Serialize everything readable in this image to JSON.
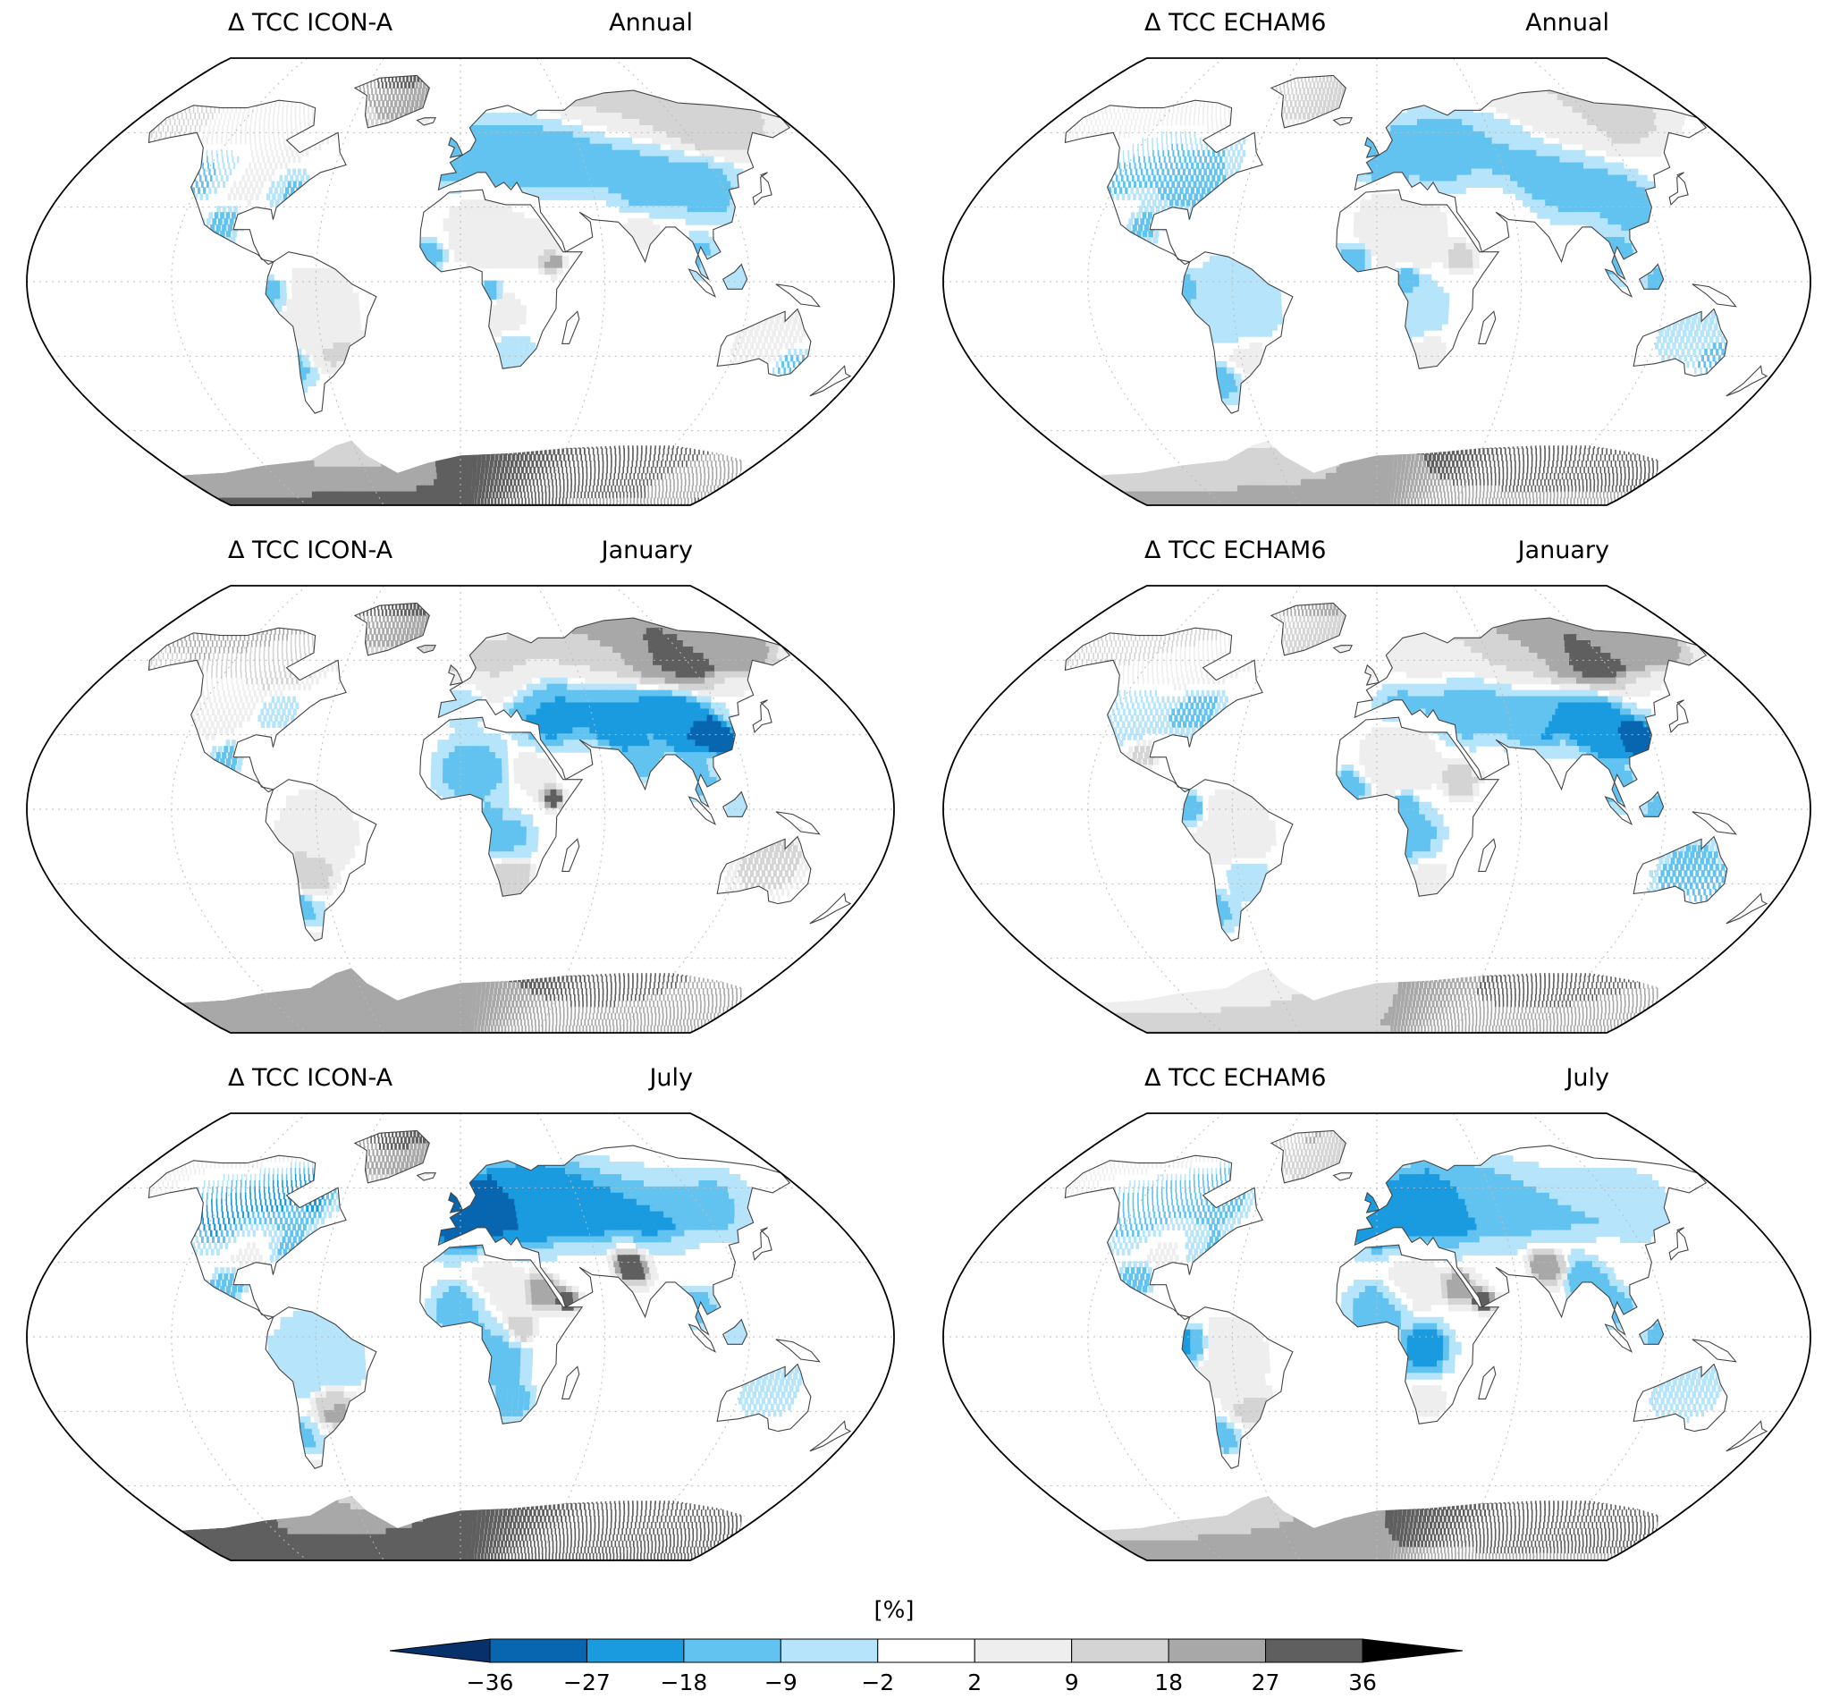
{
  "panels": [
    {
      "model_label": "Δ TCC ICON-A",
      "season_label": "Annual",
      "model": "ICON-A",
      "season": "Annual"
    },
    {
      "model_label": "Δ TCC ECHAM6",
      "season_label": "Annual",
      "model": "ECHAM6",
      "season": "Annual"
    },
    {
      "model_label": "Δ TCC ICON-A",
      "season_label": "January",
      "model": "ICON-A",
      "season": "January"
    },
    {
      "model_label": "Δ TCC ECHAM6",
      "season_label": "January",
      "model": "ECHAM6",
      "season": "January"
    },
    {
      "model_label": "Δ TCC ICON-A",
      "season_label": "July",
      "model": "ICON-A",
      "season": "July"
    },
    {
      "model_label": "Δ TCC ECHAM6",
      "season_label": "July",
      "model": "ECHAM6",
      "season": "July"
    }
  ],
  "colorbar": {
    "unit": "[%]",
    "tick_labels": [
      "−36",
      "−27",
      "−18",
      "−9",
      "−2",
      "2",
      "9",
      "18",
      "27",
      "36"
    ],
    "levels": [
      -36,
      -27,
      -18,
      -9,
      -2,
      2,
      9,
      18,
      27,
      36
    ],
    "colors": [
      "#08306b",
      "#0866b0",
      "#1a9be0",
      "#62c3f0",
      "#b6e4fa",
      "#ffffff",
      "#eeeeee",
      "#d4d4d4",
      "#a8a8a8",
      "#5f5f5f",
      "#000000"
    ],
    "extend": "both"
  },
  "style": {
    "ocean": "#ffffff",
    "coast": "#444444",
    "grid": "#bbbbbb"
  }
}
